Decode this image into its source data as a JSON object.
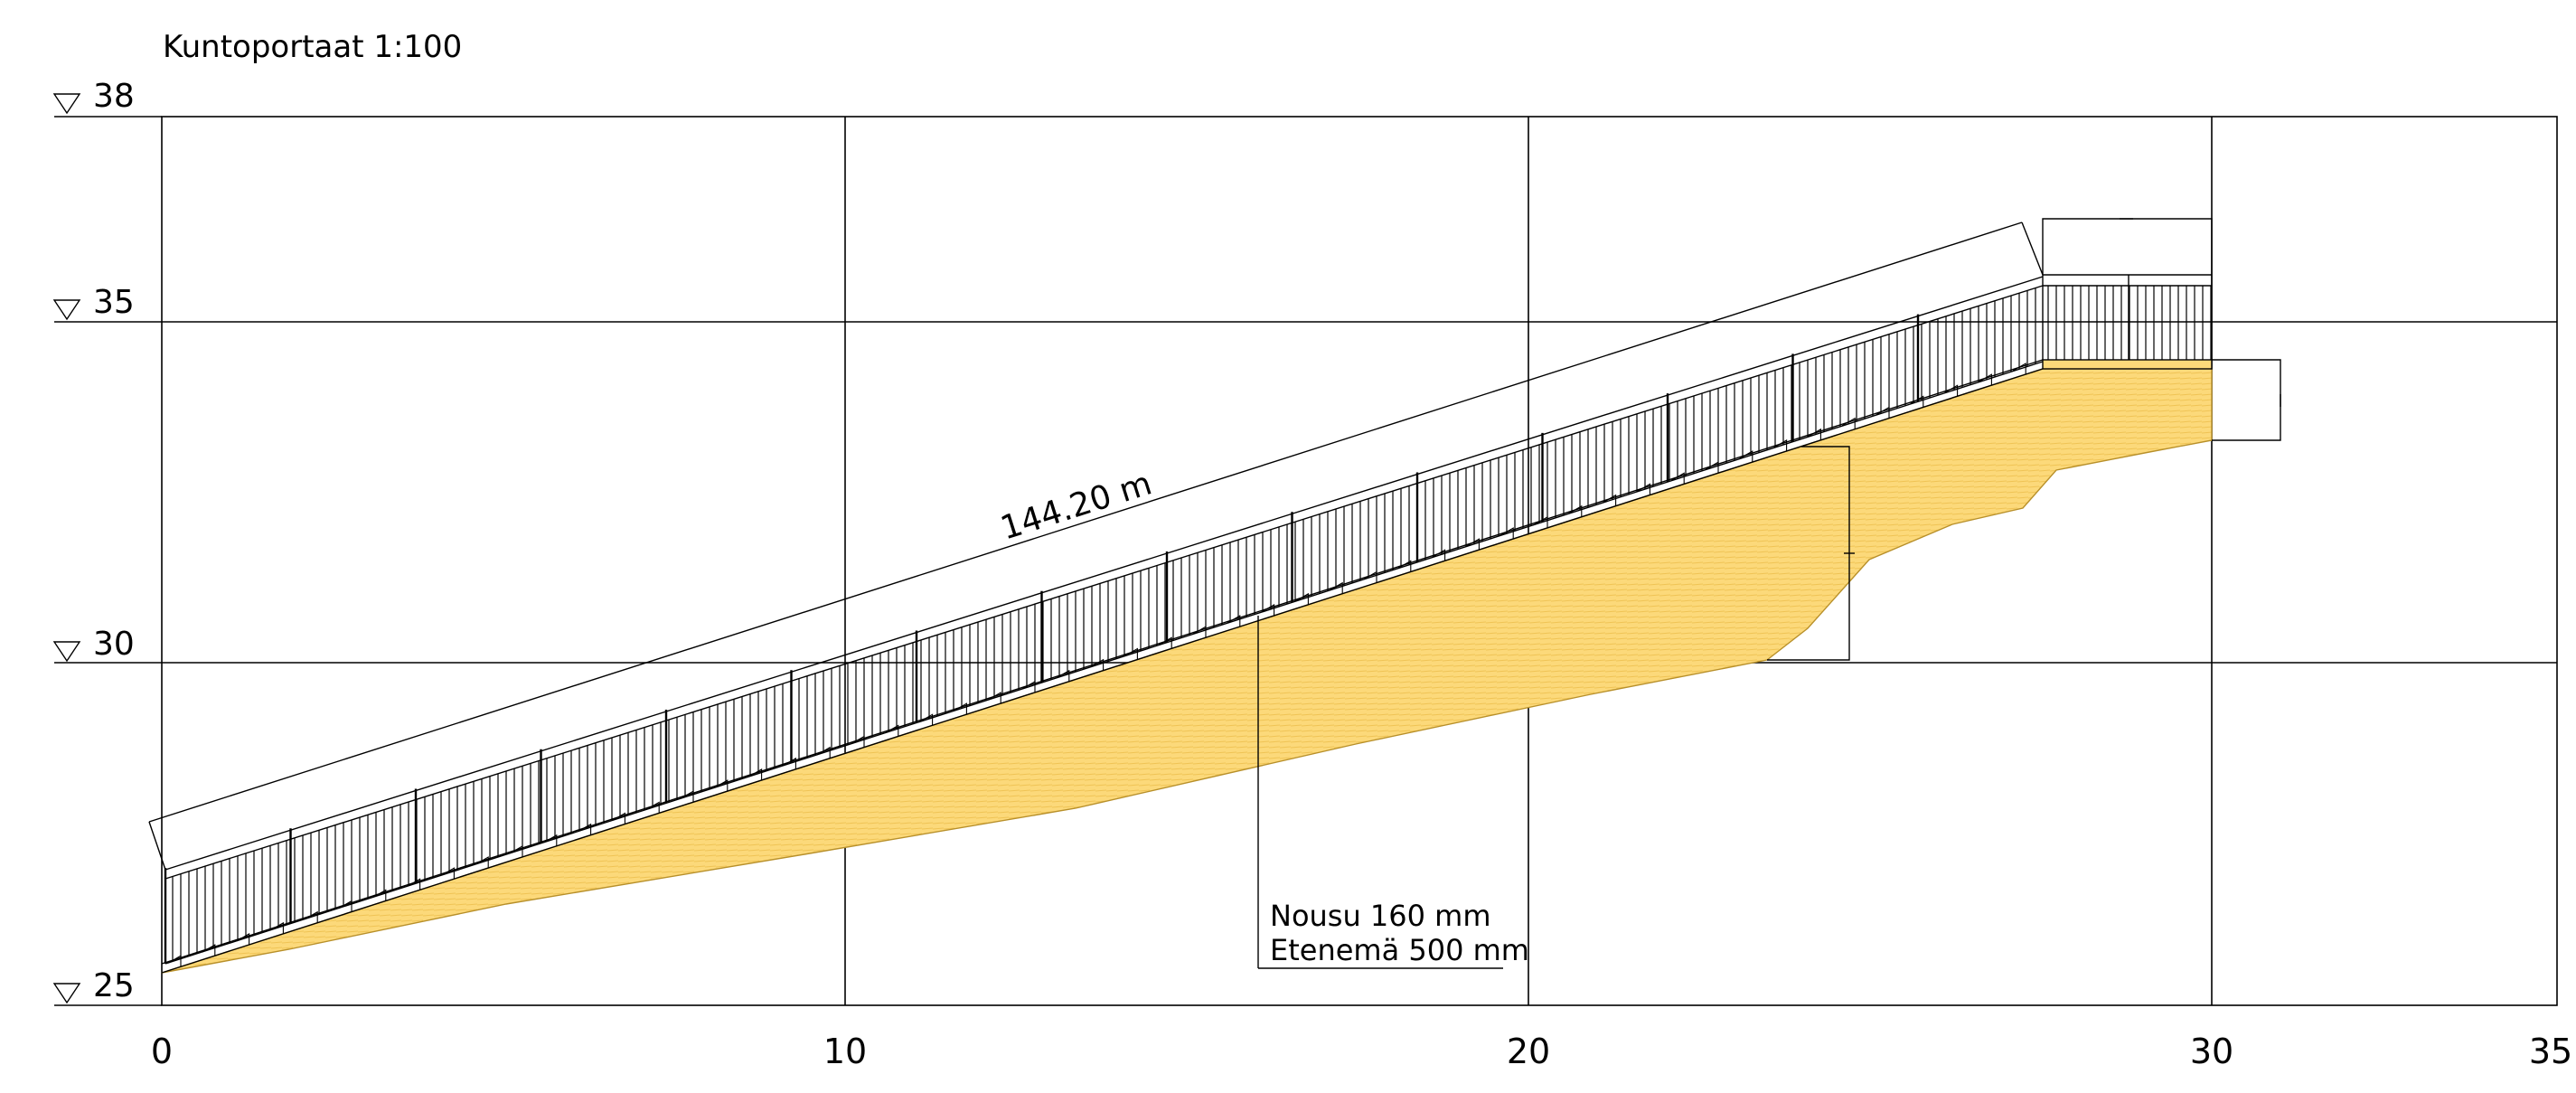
{
  "title": "Kuntoportaat  1:100",
  "length_label": "144.20  m",
  "callout": {
    "line1": "Nousu 160 mm",
    "line2": "Etenemä 500 mm"
  },
  "elevation_labels": [
    "38",
    "35",
    "30",
    "25"
  ],
  "station_labels": [
    "0",
    "10",
    "20",
    "30",
    "35"
  ],
  "colors": {
    "fill": "#fcd97a",
    "fill_dark": "#e9b93a",
    "line": "#000000"
  }
}
